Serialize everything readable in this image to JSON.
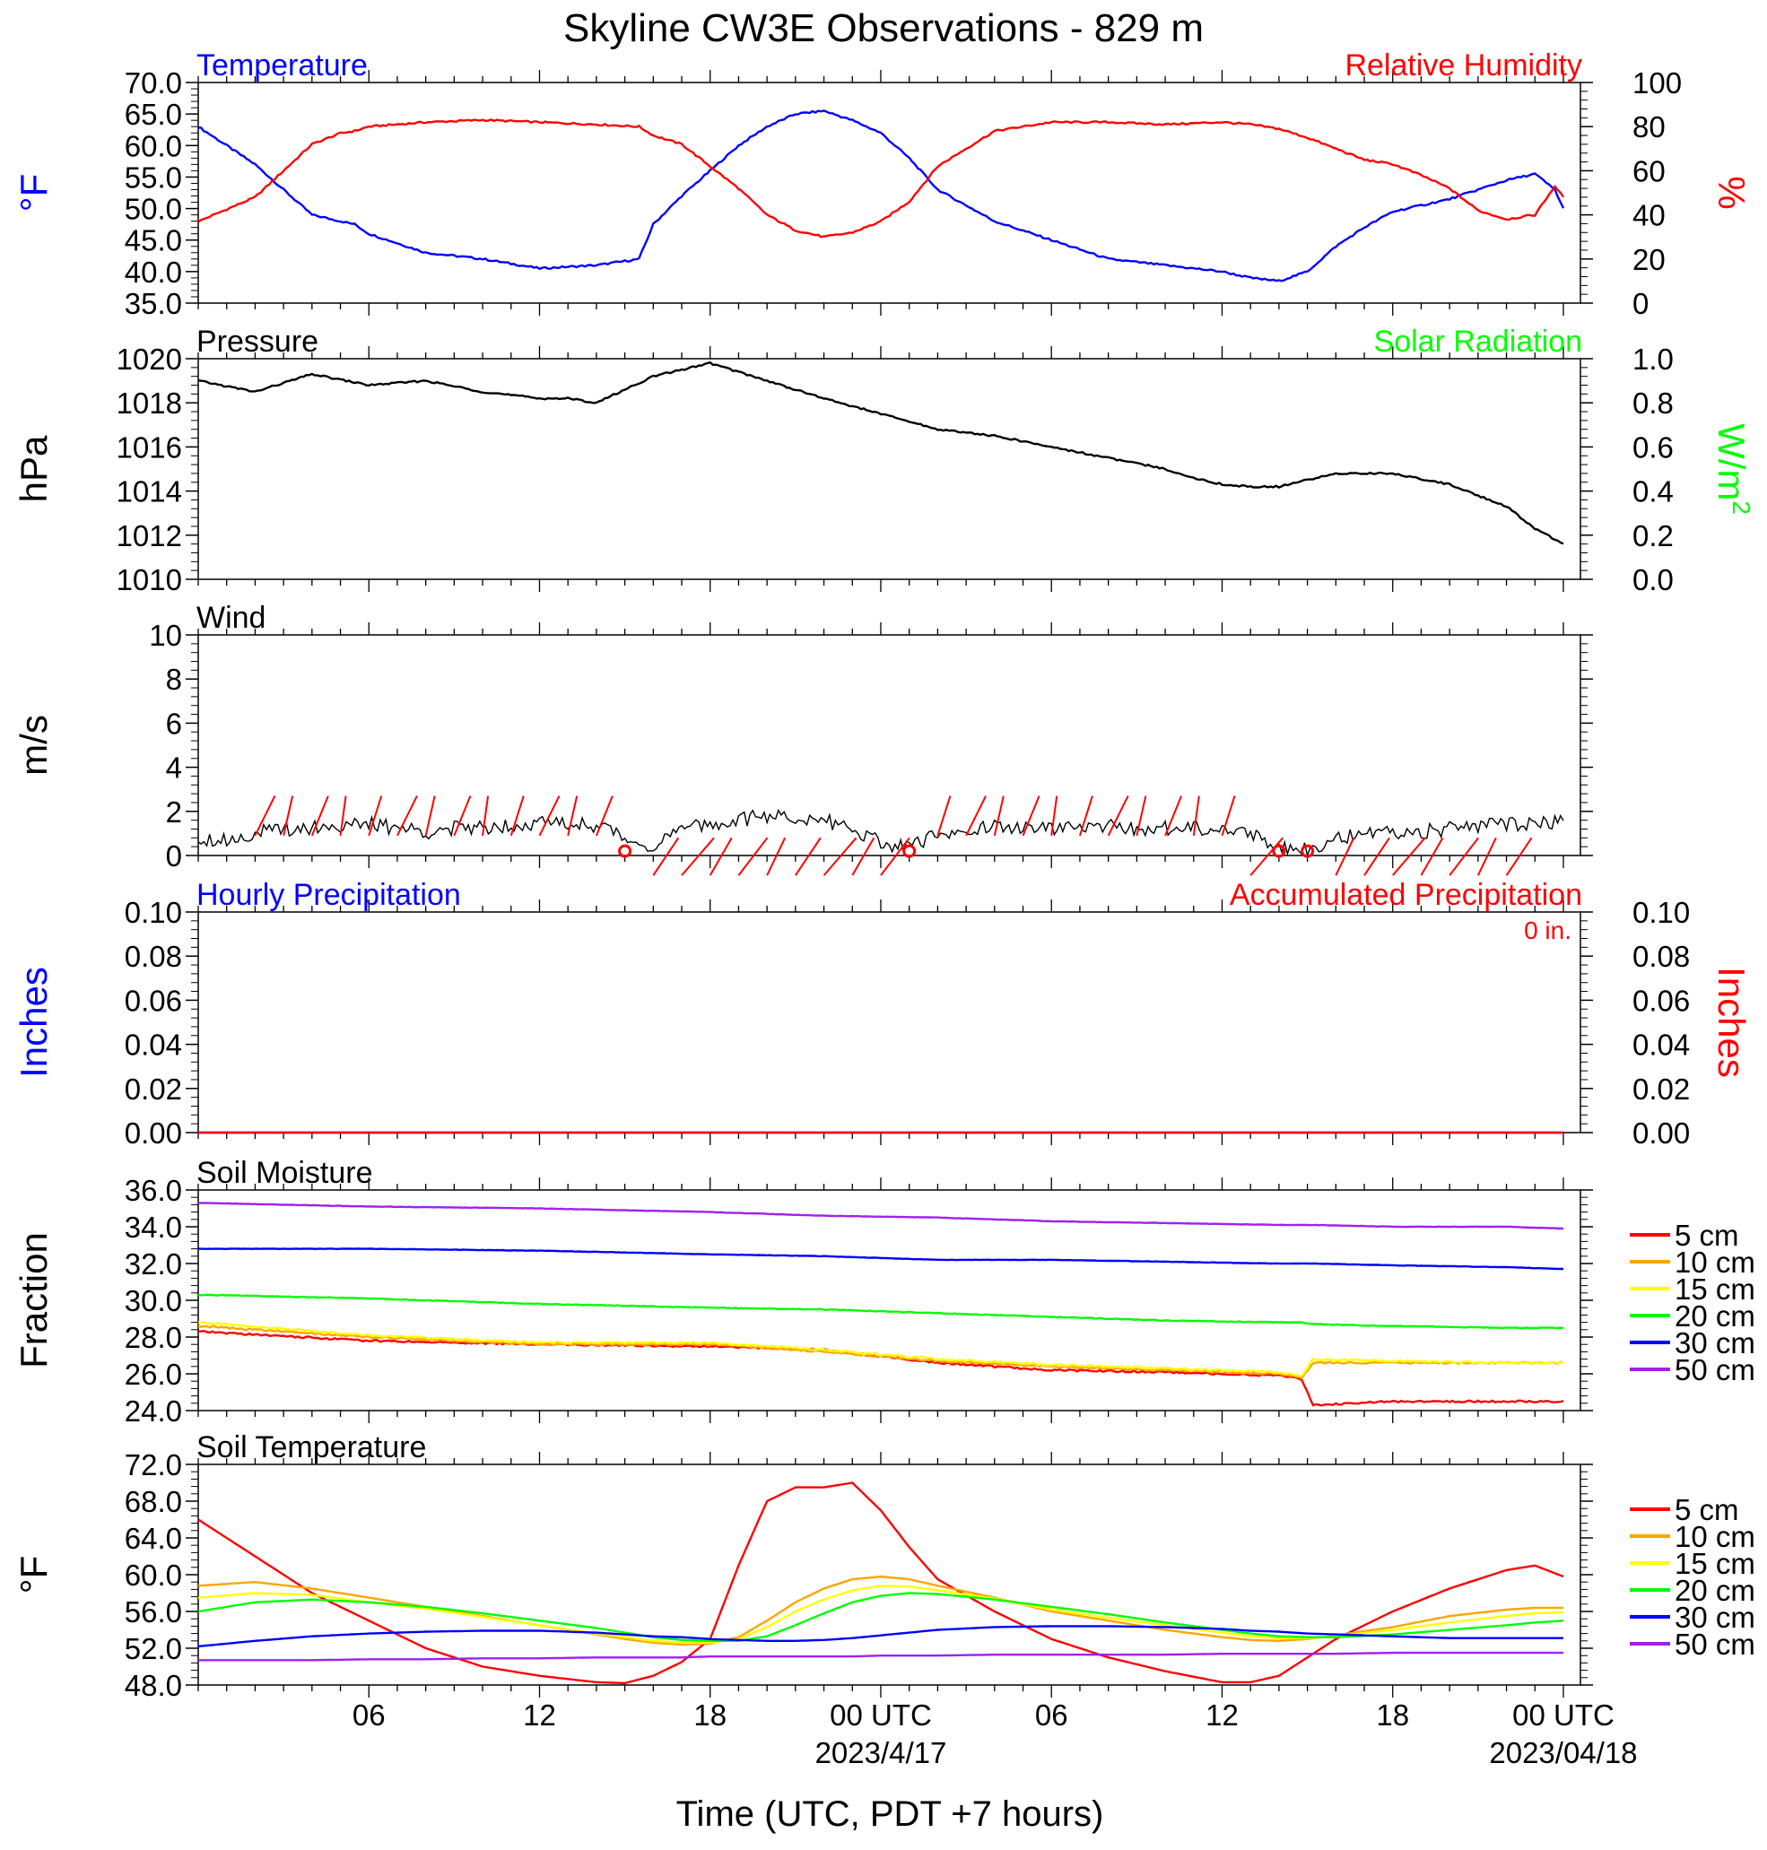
{
  "figure": {
    "title": "Skyline CW3E Observations - 829 m",
    "xlabel": "Time (UTC, PDT +7 hours)",
    "x_ticks": [
      "06",
      "12",
      "18",
      "00 UTC",
      "06",
      "12",
      "18",
      "00 UTC"
    ],
    "date_labels": [
      "2023/4/17",
      "2023/04/18"
    ]
  },
  "chart_data": [
    {
      "type": "line",
      "title_left": "Temperature",
      "title_right": "Relative Humidity",
      "ylabel_left": "°F",
      "ylabel_right": "%",
      "ylim_left": [
        35,
        70
      ],
      "ylim_right": [
        0,
        100
      ],
      "yticks_left": [
        "70.0",
        "65.0",
        "60.0",
        "55.0",
        "50.0",
        "45.0",
        "40.0",
        "35.0"
      ],
      "yticks_right": [
        "100",
        "80",
        "60",
        "40",
        "20",
        "0"
      ],
      "x_hours": [
        0,
        2,
        4,
        5,
        5.5,
        6,
        8,
        10,
        12,
        14,
        15.5,
        16,
        17,
        18,
        19,
        20,
        21,
        22,
        23,
        24,
        25,
        26,
        28,
        30,
        32,
        34,
        36,
        37,
        38,
        39,
        40,
        41,
        42,
        43,
        44,
        45,
        46,
        47,
        47.7,
        48
      ],
      "series": [
        {
          "name": "Temperature",
          "color": "#0000ff",
          "axis": "left",
          "values": [
            63,
            57,
            49,
            48,
            47.5,
            46,
            43,
            42,
            40.5,
            41,
            42,
            47.5,
            52,
            56,
            60,
            63,
            65,
            65.5,
            64,
            62,
            58,
            53,
            48,
            45,
            42,
            41,
            40,
            39,
            38.5,
            40,
            44,
            47,
            49.5,
            50.5,
            51.5,
            53,
            54.5,
            55.5,
            53,
            50
          ]
        },
        {
          "name": "Relative Humidity",
          "color": "#ff0000",
          "axis": "right",
          "values": [
            37,
            48,
            72,
            77,
            78,
            80,
            82,
            83,
            82,
            81,
            80,
            76,
            72,
            62,
            52,
            40,
            33,
            30,
            32,
            37,
            46,
            62,
            78,
            82,
            82,
            81,
            82,
            81,
            79,
            75,
            70,
            65,
            63,
            58,
            52,
            42,
            38,
            40,
            53,
            48
          ]
        }
      ]
    },
    {
      "type": "line",
      "title_left": "Pressure",
      "title_right": "Solar Radiation",
      "ylabel_left": "hPa",
      "ylabel_right": "W/m",
      "ylabel_right_sup": "2",
      "ylim_left": [
        1010,
        1020
      ],
      "ylim_right": [
        0,
        1
      ],
      "yticks_left": [
        "1020",
        "1018",
        "1016",
        "1014",
        "1012",
        "1010"
      ],
      "yticks_right": [
        "1.0",
        "0.8",
        "0.6",
        "0.4",
        "0.2",
        "0.0"
      ],
      "x_hours": [
        0,
        2,
        4,
        6,
        8,
        10,
        12,
        13,
        14,
        16,
        18,
        20,
        22,
        24,
        26,
        28,
        30,
        32,
        34,
        35,
        36,
        37,
        38,
        40,
        42,
        44,
        46,
        47,
        48
      ],
      "series": [
        {
          "name": "Pressure",
          "color": "#000000",
          "axis": "left",
          "values": [
            1019,
            1018.5,
            1019.3,
            1018.8,
            1019,
            1018.5,
            1018.2,
            1018.2,
            1018,
            1019.2,
            1019.8,
            1019,
            1018.2,
            1017.5,
            1016.8,
            1016.5,
            1016,
            1015.5,
            1015,
            1014.6,
            1014.3,
            1014.2,
            1014.2,
            1014.8,
            1014.8,
            1014.3,
            1013.3,
            1012.3,
            1011.6
          ]
        }
      ]
    },
    {
      "type": "line",
      "title_left": "Wind",
      "ylabel_left": "m/s",
      "ylim_left": [
        0,
        10
      ],
      "yticks_left": [
        "10",
        "8",
        "6",
        "4",
        "2",
        "0"
      ],
      "x_hours": [
        0,
        1,
        2,
        3,
        4,
        6,
        8,
        10,
        12,
        14,
        15,
        16,
        17,
        18,
        20,
        22,
        23,
        24,
        25,
        26,
        28,
        30,
        32,
        34,
        36,
        37,
        38,
        39,
        40,
        42,
        44,
        46,
        48
      ],
      "series": [
        {
          "name": "Wind Speed",
          "color": "#000000",
          "axis": "left",
          "values": [
            0.8,
            0.7,
            1.0,
            1.2,
            1.3,
            1.4,
            1.1,
            1.3,
            1.5,
            1.4,
            0.8,
            0.4,
            1.2,
            1.4,
            1.8,
            1.6,
            1.2,
            0.6,
            0.3,
            1.0,
            1.3,
            1.2,
            1.3,
            1.2,
            1.3,
            1.0,
            0.4,
            0.3,
            0.8,
            1.0,
            1.2,
            1.4,
            1.5
          ]
        }
      ],
      "calm_hours": [
        15,
        25,
        38,
        39
      ]
    },
    {
      "type": "line",
      "title_left": "Hourly Precipitation",
      "title_right": "Accumulated Precipitation",
      "annotation": "0 in.",
      "ylabel_left": "Inches",
      "ylabel_right": "Inches",
      "ylim_left": [
        0,
        0.1
      ],
      "ylim_right": [
        0,
        0.1
      ],
      "yticks_left": [
        "0.10",
        "0.08",
        "0.06",
        "0.04",
        "0.02",
        "0.00"
      ],
      "yticks_right": [
        "0.10",
        "0.08",
        "0.06",
        "0.04",
        "0.02",
        "0.00"
      ],
      "x_hours": [
        0,
        48
      ],
      "series": [
        {
          "name": "Hourly Precipitation",
          "color": "#0000ff",
          "axis": "left",
          "values": [
            0,
            0
          ]
        },
        {
          "name": "Accumulated Precipitation",
          "color": "#ff0000",
          "axis": "right",
          "values": [
            0,
            0
          ]
        }
      ]
    },
    {
      "type": "line",
      "title_left": "Soil Moisture",
      "ylabel_left": "Fraction",
      "ylim_left": [
        24,
        36
      ],
      "yticks_left": [
        "36.0",
        "34.0",
        "32.0",
        "30.0",
        "28.0",
        "26.0",
        "24.0"
      ],
      "x_hours": [
        0,
        6,
        12,
        18,
        22,
        26,
        30,
        34,
        38,
        38.8,
        39.2,
        42,
        46,
        48
      ],
      "legend_position": "right",
      "series": [
        {
          "name": "5 cm",
          "color": "#ff0000",
          "axis": "left",
          "values": [
            28.3,
            27.8,
            27.6,
            27.5,
            27.3,
            26.6,
            26.2,
            26.1,
            25.9,
            25.7,
            24.3,
            24.5,
            24.5,
            24.5
          ]
        },
        {
          "name": "10 cm",
          "color": "#ffa500",
          "axis": "left",
          "values": [
            28.6,
            28.0,
            27.6,
            27.6,
            27.2,
            26.7,
            26.4,
            26.2,
            26.0,
            25.8,
            26.6,
            26.6,
            26.6,
            26.6
          ]
        },
        {
          "name": "15 cm",
          "color": "#ffff00",
          "axis": "left",
          "values": [
            28.8,
            28.1,
            27.7,
            27.7,
            27.3,
            26.8,
            26.5,
            26.3,
            26.1,
            25.9,
            26.8,
            26.7,
            26.6,
            26.6
          ]
        },
        {
          "name": "20 cm",
          "color": "#00ff00",
          "axis": "left",
          "values": [
            30.3,
            30.1,
            29.8,
            29.6,
            29.5,
            29.3,
            29.1,
            28.9,
            28.8,
            28.8,
            28.7,
            28.6,
            28.5,
            28.5
          ]
        },
        {
          "name": "30 cm",
          "color": "#0000ff",
          "axis": "left",
          "values": [
            32.8,
            32.8,
            32.7,
            32.5,
            32.4,
            32.2,
            32.2,
            32.1,
            32.0,
            32.0,
            32.0,
            31.9,
            31.8,
            31.7
          ]
        },
        {
          "name": "50 cm",
          "color": "#a020f0",
          "axis": "left",
          "values": [
            35.3,
            35.1,
            35.0,
            34.8,
            34.6,
            34.5,
            34.3,
            34.2,
            34.1,
            34.1,
            34.1,
            34.0,
            34.0,
            33.9
          ]
        }
      ]
    },
    {
      "type": "line",
      "title_left": "Soil Temperature",
      "ylabel_left": "°F",
      "ylim_left": [
        48,
        72
      ],
      "yticks_left": [
        "72.0",
        "68.0",
        "64.0",
        "60.0",
        "56.0",
        "52.0",
        "48.0"
      ],
      "x_hours": [
        0,
        2,
        4,
        6,
        8,
        10,
        12,
        14,
        15,
        16,
        17,
        18,
        19,
        20,
        21,
        22,
        23,
        24,
        25,
        26,
        28,
        30,
        32,
        34,
        36,
        37,
        38,
        39,
        40,
        42,
        44,
        46,
        47,
        48
      ],
      "legend_position": "right",
      "series": [
        {
          "name": "5 cm",
          "color": "#ff0000",
          "axis": "left",
          "values": [
            66,
            62,
            58,
            55,
            52,
            50,
            49,
            48.3,
            48.2,
            49,
            50.5,
            53,
            61,
            68,
            69.5,
            69.5,
            70,
            67,
            63,
            59.5,
            56,
            53,
            51,
            49.5,
            48.3,
            48.3,
            49,
            51,
            53,
            56,
            58.5,
            60.5,
            61,
            59.8
          ]
        },
        {
          "name": "10 cm",
          "color": "#ffa500",
          "axis": "left",
          "values": [
            58.8,
            59.2,
            58.5,
            57.5,
            56.5,
            55.5,
            54.5,
            53.5,
            53,
            52.6,
            52.4,
            52.5,
            53.2,
            55,
            57,
            58.5,
            59.5,
            59.8,
            59.5,
            58.8,
            57.5,
            56,
            55,
            54,
            53.2,
            52.9,
            52.8,
            53,
            53.4,
            54.3,
            55.5,
            56.2,
            56.4,
            56.4
          ]
        },
        {
          "name": "15 cm",
          "color": "#ffff00",
          "axis": "left",
          "values": [
            57.5,
            58,
            57.8,
            57,
            56.3,
            55.4,
            54.5,
            53.6,
            53.2,
            52.8,
            52.6,
            52.6,
            53,
            54.3,
            56,
            57.3,
            58.3,
            58.8,
            58.7,
            58.3,
            57.4,
            56.2,
            55.3,
            54.5,
            53.7,
            53.3,
            53.1,
            53.1,
            53.3,
            54,
            54.8,
            55.5,
            55.8,
            55.9
          ]
        },
        {
          "name": "20 cm",
          "color": "#00ff00",
          "axis": "left",
          "values": [
            56,
            57,
            57.3,
            57,
            56.5,
            55.8,
            55,
            54.2,
            53.7,
            53.2,
            52.9,
            52.8,
            52.8,
            53.3,
            54.5,
            55.8,
            57,
            57.7,
            58,
            57.9,
            57.3,
            56.5,
            55.7,
            54.8,
            54,
            53.6,
            53.3,
            53.2,
            53.2,
            53.5,
            54,
            54.5,
            54.8,
            55
          ]
        },
        {
          "name": "30 cm",
          "color": "#0000ff",
          "axis": "left",
          "values": [
            52.2,
            52.8,
            53.3,
            53.6,
            53.8,
            53.9,
            53.9,
            53.7,
            53.5,
            53.3,
            53.2,
            53.0,
            52.9,
            52.8,
            52.8,
            52.9,
            53.1,
            53.4,
            53.7,
            54,
            54.3,
            54.4,
            54.4,
            54.3,
            54.1,
            53.9,
            53.8,
            53.6,
            53.5,
            53.3,
            53.1,
            53.1,
            53.1,
            53.1
          ]
        },
        {
          "name": "50 cm",
          "color": "#a020f0",
          "axis": "left",
          "values": [
            50.7,
            50.7,
            50.7,
            50.8,
            50.8,
            50.9,
            50.9,
            51.0,
            51.0,
            51.0,
            51.0,
            51.1,
            51.1,
            51.1,
            51.1,
            51.1,
            51.1,
            51.2,
            51.2,
            51.2,
            51.3,
            51.3,
            51.3,
            51.3,
            51.4,
            51.4,
            51.4,
            51.4,
            51.4,
            51.5,
            51.5,
            51.5,
            51.5,
            51.5
          ]
        }
      ]
    }
  ]
}
